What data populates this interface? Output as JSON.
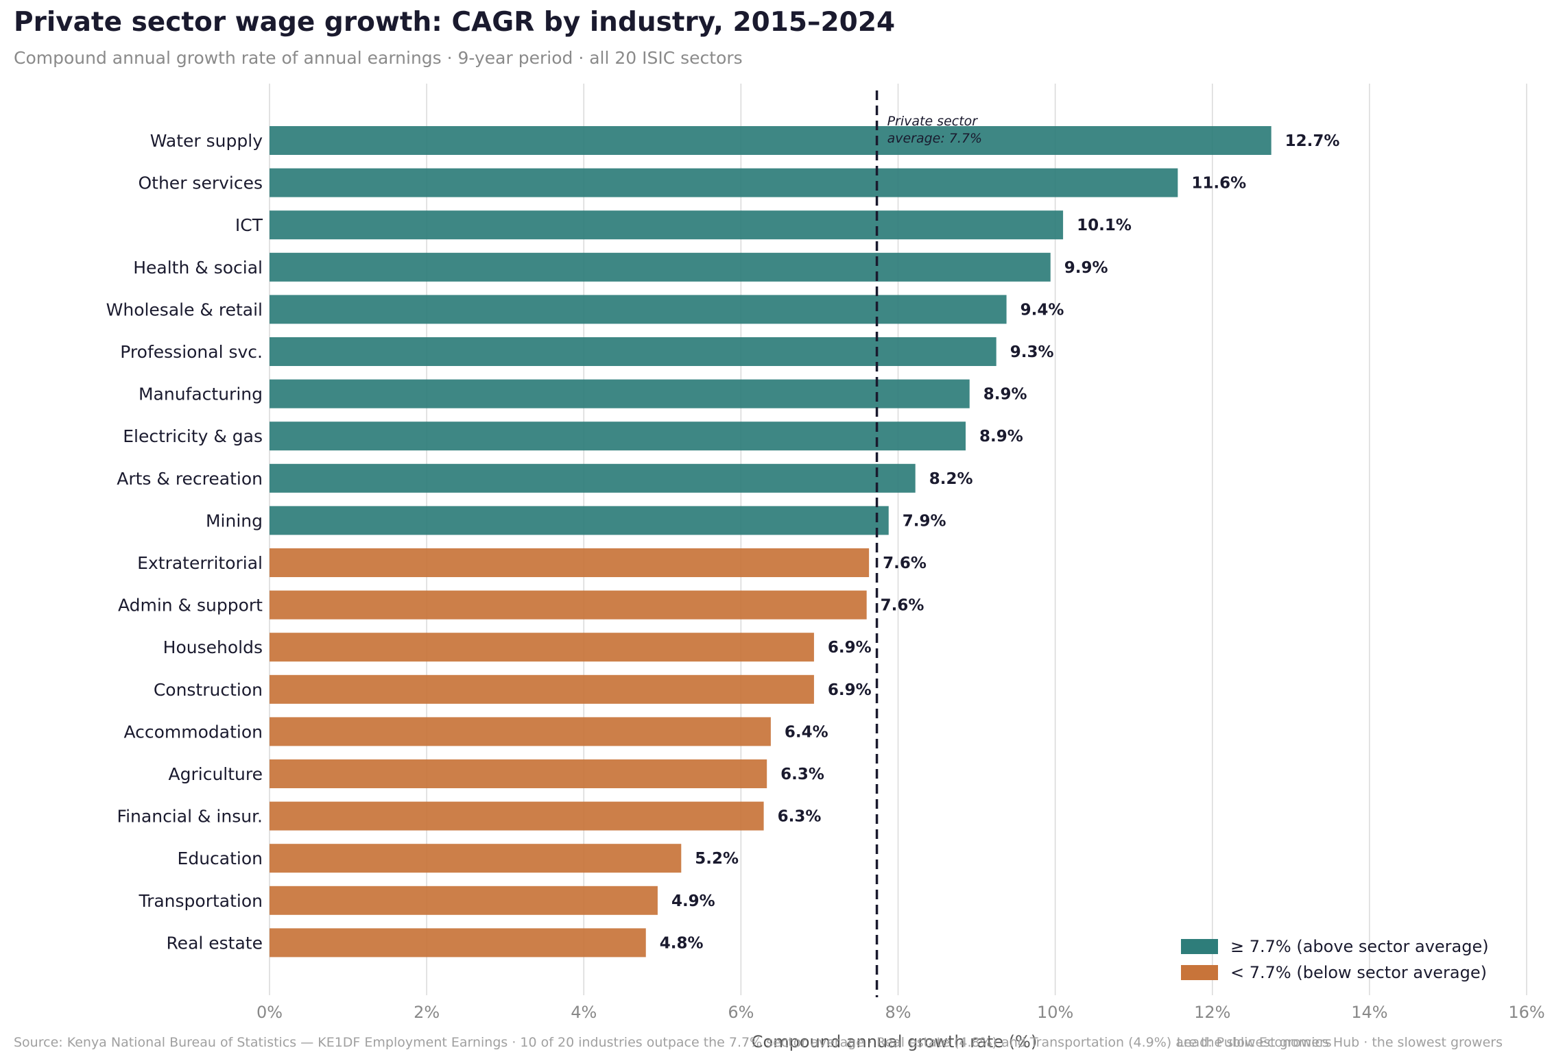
{
  "title": "Private sector wage growth: CAGR by industry, 2015–2024",
  "subtitle": "Compound annual growth rate of annual earnings · 9-year period · all 20 ISIC sectors",
  "footer": {
    "source": "Source: Kenya National Bureau of Statistics — KE1DF Employment Earnings   ·   10 of 20 industries outpace the 7.7% sector average · Real estate (4.8%) and Transportation (4.9%) are the slowest growers",
    "note": "Lead: Public Economics Hub · the slowest growers"
  },
  "legend": {
    "above_label": "≥ 7.7%  (above sector average)",
    "below_label": "< 7.7%  (below sector average)"
  },
  "colors": {
    "above": "#2e7d7a",
    "below": "#c8743a",
    "reference_line": "#1a1a2e"
  },
  "chart_data": {
    "type": "bar",
    "orientation": "horizontal",
    "categories": [
      "Water supply",
      "Other services",
      "ICT",
      "Health & social",
      "Wholesale & retail",
      "Professional svc.",
      "Manufacturing",
      "Electricity & gas",
      "Arts & recreation",
      "Mining",
      "Extraterritorial",
      "Admin & support",
      "Households",
      "Construction",
      "Accommodation",
      "Agriculture",
      "Financial & insur.",
      "Education",
      "Transportation",
      "Real estate"
    ],
    "values": [
      12.75,
      11.56,
      10.1,
      9.94,
      9.38,
      9.25,
      8.91,
      8.86,
      8.22,
      7.88,
      7.63,
      7.6,
      6.93,
      6.93,
      6.38,
      6.33,
      6.29,
      5.24,
      4.94,
      4.79
    ],
    "value_labels": [
      "12.7%",
      "11.6%",
      "10.1%",
      "9.9%",
      "9.4%",
      "9.3%",
      "8.9%",
      "8.9%",
      "8.2%",
      "7.9%",
      "7.6%",
      "7.6%",
      "6.9%",
      "6.9%",
      "6.4%",
      "6.3%",
      "6.3%",
      "5.2%",
      "4.9%",
      "4.8%"
    ],
    "groups": [
      "above",
      "above",
      "above",
      "above",
      "above",
      "above",
      "above",
      "above",
      "above",
      "above",
      "below",
      "below",
      "below",
      "below",
      "below",
      "below",
      "below",
      "below",
      "below",
      "below"
    ],
    "title": "Private sector wage growth: CAGR by industry, 2015–2024",
    "xlabel": "Compound annual growth rate (%)",
    "ylabel": "",
    "xlim": [
      0,
      16
    ],
    "xticks": [
      0,
      2,
      4,
      6,
      8,
      10,
      12,
      14,
      16
    ],
    "xtick_labels": [
      "0%",
      "2%",
      "4%",
      "6%",
      "8%",
      "10%",
      "12%",
      "14%",
      "16%"
    ],
    "grid": "x",
    "legend_position": "bottom-right",
    "reference_line": {
      "value": 7.73,
      "label_line1": "Private sector",
      "label_line2": "average: 7.7%"
    }
  }
}
